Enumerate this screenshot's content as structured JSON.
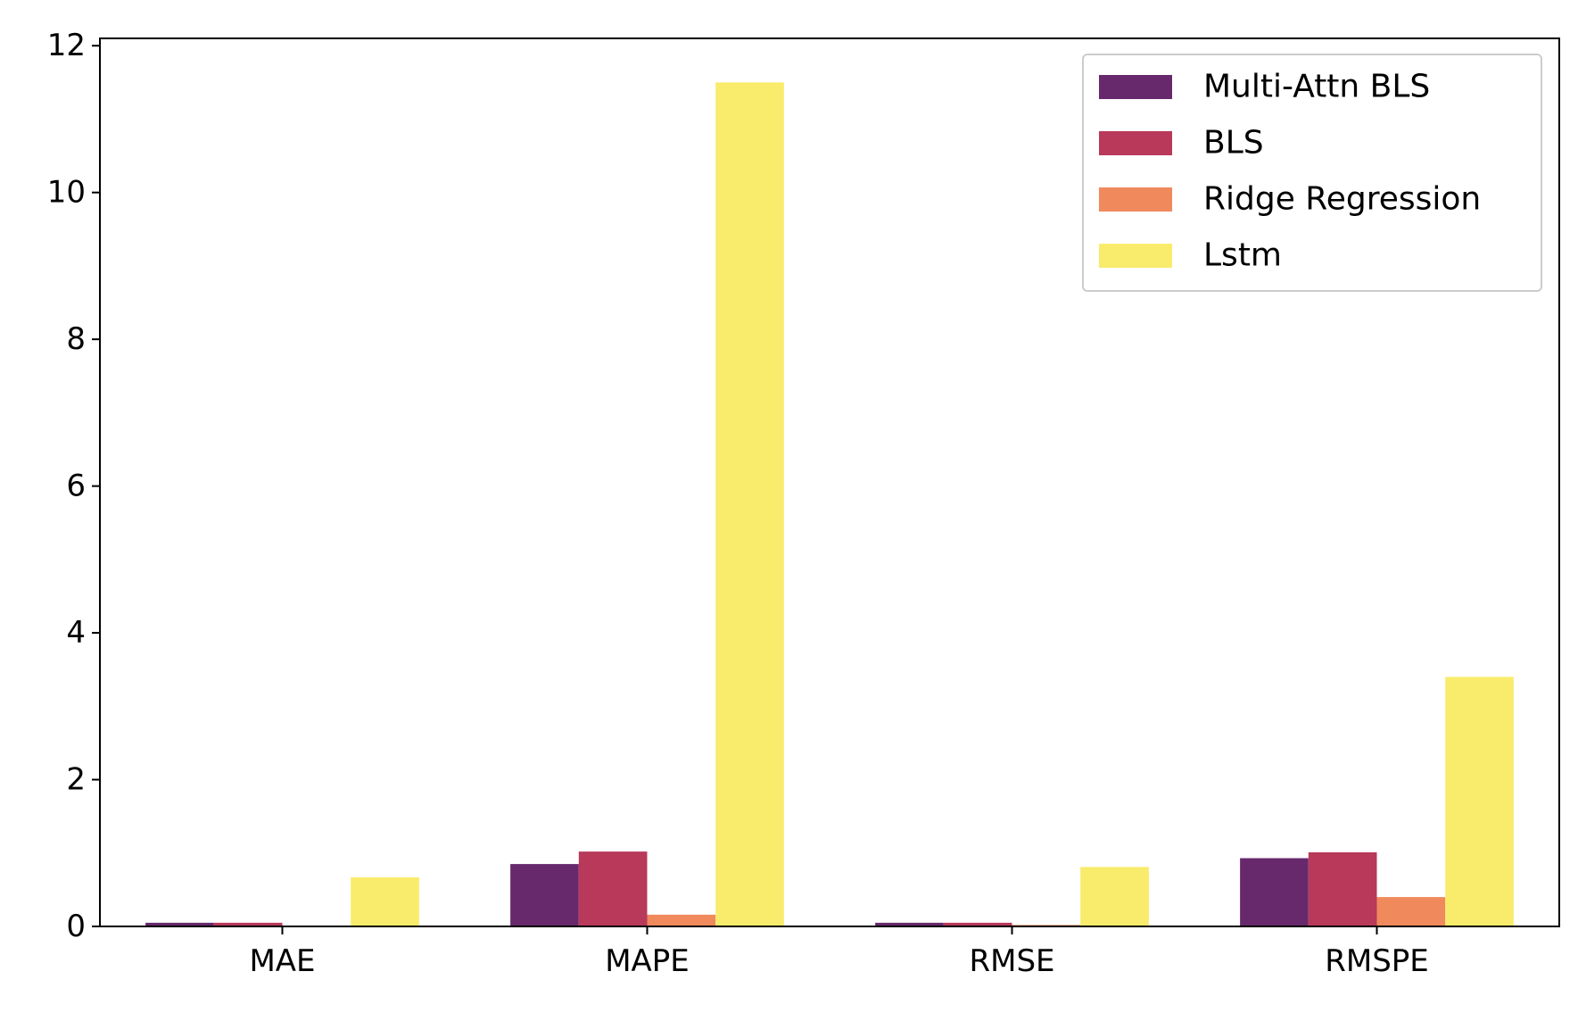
{
  "chart_data": {
    "type": "bar",
    "title": "",
    "xlabel": "",
    "ylabel": "",
    "categories": [
      "MAE",
      "MAPE",
      "RMSE",
      "RMSPE"
    ],
    "ylim": [
      0,
      12.1
    ],
    "yticks": [
      0,
      2,
      4,
      6,
      8,
      10,
      12
    ],
    "grid": false,
    "legend_position": "top-right",
    "series": [
      {
        "name": "Multi-Attn BLS",
        "color": "#67296c",
        "values": [
          0.05,
          0.85,
          0.05,
          0.93
        ]
      },
      {
        "name": "BLS",
        "color": "#b8395a",
        "values": [
          0.05,
          1.02,
          0.05,
          1.01
        ]
      },
      {
        "name": "Ridge Regression",
        "color": "#f0895c",
        "values": [
          0.01,
          0.16,
          0.02,
          0.4
        ]
      },
      {
        "name": "Lstm",
        "color": "#f9ec6c",
        "values": [
          0.67,
          11.5,
          0.81,
          3.4
        ]
      }
    ]
  }
}
